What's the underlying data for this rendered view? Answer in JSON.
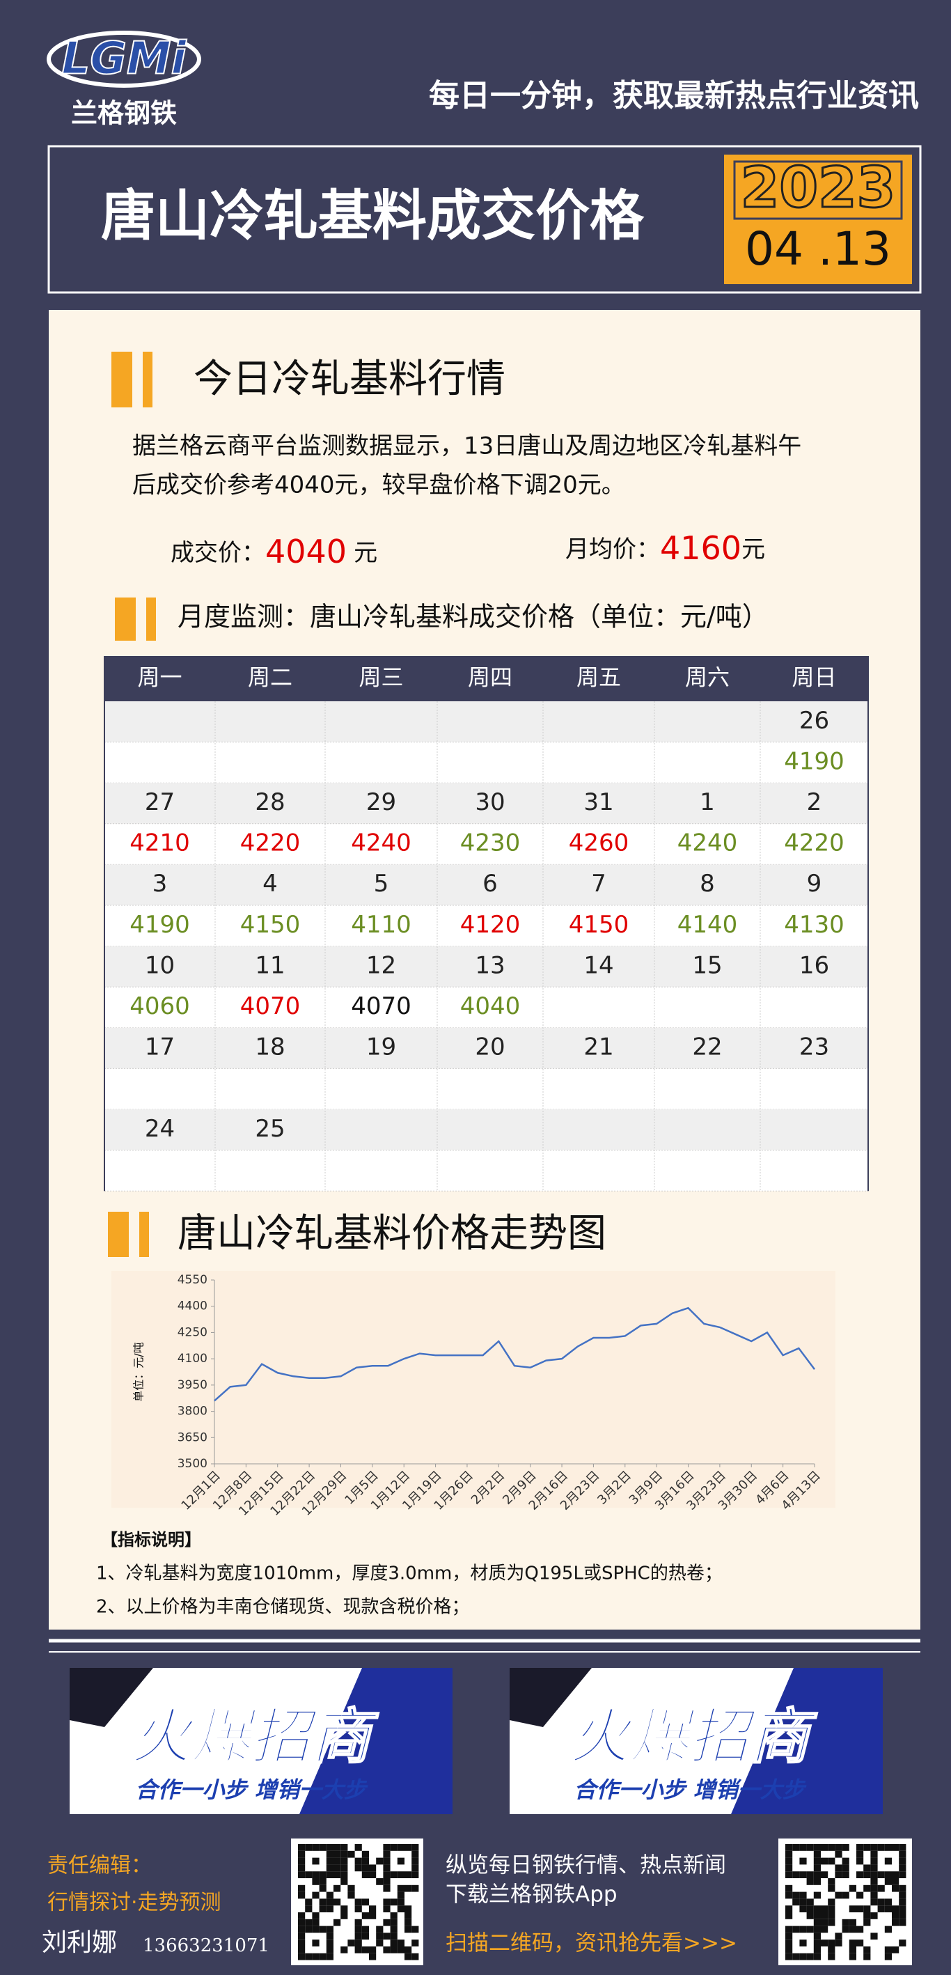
{
  "header": {
    "logo": "LGMi",
    "brand": "兰格钢铁",
    "slogan": "每日一分钟，获取最新热点行业资讯",
    "title": "唐山冷轧基料成交价格",
    "year": "2023",
    "date": "04 .13"
  },
  "today": {
    "heading": "今日冷轧基料行情",
    "paragraph": [
      "据兰格云商平台监测数据显示，13日唐山及周边地区冷轧基料午",
      "后成交价参考4040元，较早盘价格下调20元。"
    ],
    "price_label": "成交价：",
    "price": 4040,
    "price_unit": "元",
    "avg_label": "月均价：",
    "avg": 4160,
    "avg_unit": "元"
  },
  "calendar": {
    "heading": "月度监测：唐山冷轧基料成交价格（单位：元/吨）",
    "weekdays": [
      "周一",
      "周二",
      "周三",
      "周四",
      "周五",
      "周六",
      "周日"
    ],
    "weeks": [
      {
        "dates": [
          null,
          null,
          null,
          null,
          null,
          null,
          26
        ],
        "prices": [
          null,
          null,
          null,
          null,
          null,
          null,
          4190
        ],
        "price_colors": [
          null,
          null,
          null,
          null,
          null,
          null,
          "#6b8e23"
        ]
      },
      {
        "dates": [
          27,
          28,
          29,
          30,
          31,
          1,
          2
        ],
        "prices": [
          4210,
          4220,
          4240,
          4230,
          4260,
          4240,
          4220
        ],
        "price_colors": [
          "#e00000",
          "#e00000",
          "#e00000",
          "#6b8e23",
          "#e00000",
          "#6b8e23",
          "#6b8e23"
        ]
      },
      {
        "dates": [
          3,
          4,
          5,
          6,
          7,
          8,
          9
        ],
        "prices": [
          4190,
          4150,
          4110,
          4120,
          4150,
          4140,
          4130
        ],
        "price_colors": [
          "#6b8e23",
          "#6b8e23",
          "#6b8e23",
          "#e00000",
          "#e00000",
          "#6b8e23",
          "#6b8e23"
        ]
      },
      {
        "dates": [
          10,
          11,
          12,
          13,
          14,
          15,
          16
        ],
        "prices": [
          4060,
          4070,
          4070,
          4040,
          null,
          null,
          null
        ],
        "price_colors": [
          "#6b8e23",
          "#e00000",
          "#111111",
          "#6b8e23",
          null,
          null,
          null
        ]
      },
      {
        "dates": [
          17,
          18,
          19,
          20,
          21,
          22,
          23
        ],
        "prices": [
          null,
          null,
          null,
          null,
          null,
          null,
          null
        ],
        "price_colors": [
          null,
          null,
          null,
          null,
          null,
          null,
          null
        ]
      },
      {
        "dates": [
          24,
          25,
          null,
          null,
          null,
          null,
          null
        ],
        "prices": [
          null,
          null,
          null,
          null,
          null,
          null,
          null
        ],
        "price_colors": [
          null,
          null,
          null,
          null,
          null,
          null,
          null
        ]
      }
    ]
  },
  "chart_data": {
    "type": "line",
    "title": "唐山冷轧基料价格走势图",
    "y_label": "单位：元/吨",
    "categories": [
      "12月1日",
      null,
      "12月8日",
      null,
      "12月15日",
      null,
      "12月22日",
      null,
      "12月29日",
      null,
      "1月5日",
      null,
      "1月12日",
      null,
      "1月19日",
      null,
      "1月26日",
      null,
      "2月2日",
      null,
      "2月9日",
      null,
      "2月16日",
      null,
      "2月23日",
      null,
      "3月2日",
      null,
      "3月9日",
      null,
      "3月16日",
      null,
      "3月23日",
      null,
      "3月30日",
      null,
      "4月6日",
      null,
      "4月13日"
    ],
    "series": [
      {
        "name": "唐山冷轧基料",
        "color": "#4472c4",
        "values": [
          3860,
          3940,
          3950,
          4070,
          4020,
          4000,
          3990,
          3990,
          4000,
          4050,
          4060,
          4060,
          4100,
          4130,
          4120,
          4120,
          4120,
          4120,
          4200,
          4060,
          4050,
          4090,
          4100,
          4170,
          4220,
          4220,
          4230,
          4290,
          4300,
          4360,
          4390,
          4300,
          4280,
          4240,
          4200,
          4250,
          4120,
          4160,
          4040
        ]
      }
    ],
    "ylim": [
      3500,
      4550
    ],
    "yticks": [
      3500,
      3650,
      3800,
      3950,
      4100,
      4250,
      4400,
      4550
    ]
  },
  "notes": {
    "heading": "【指标说明】",
    "items": [
      "1、冷轧基料为宽度1010mm，厚度3.0mm，材质为Q195L或SPHC的热卷；",
      "2、以上价格为丰南仓储现货、现款含税价格；"
    ]
  },
  "ads": [
    {
      "title": "火爆招商",
      "tagline": "合作一小步  增销一大步"
    },
    {
      "title": "火爆招商",
      "tagline": "合作一小步  增销一大步"
    }
  ],
  "footer": {
    "editor_label": "责任编辑：",
    "topic": "行情探讨·走势预测",
    "editor": "刘利娜",
    "phone": "13663231071",
    "line1": "纵览每日钢铁行情、热点新闻",
    "line2": "下载兰格钢铁App",
    "scan": "扫描二维码，资讯抢先看>>>"
  }
}
